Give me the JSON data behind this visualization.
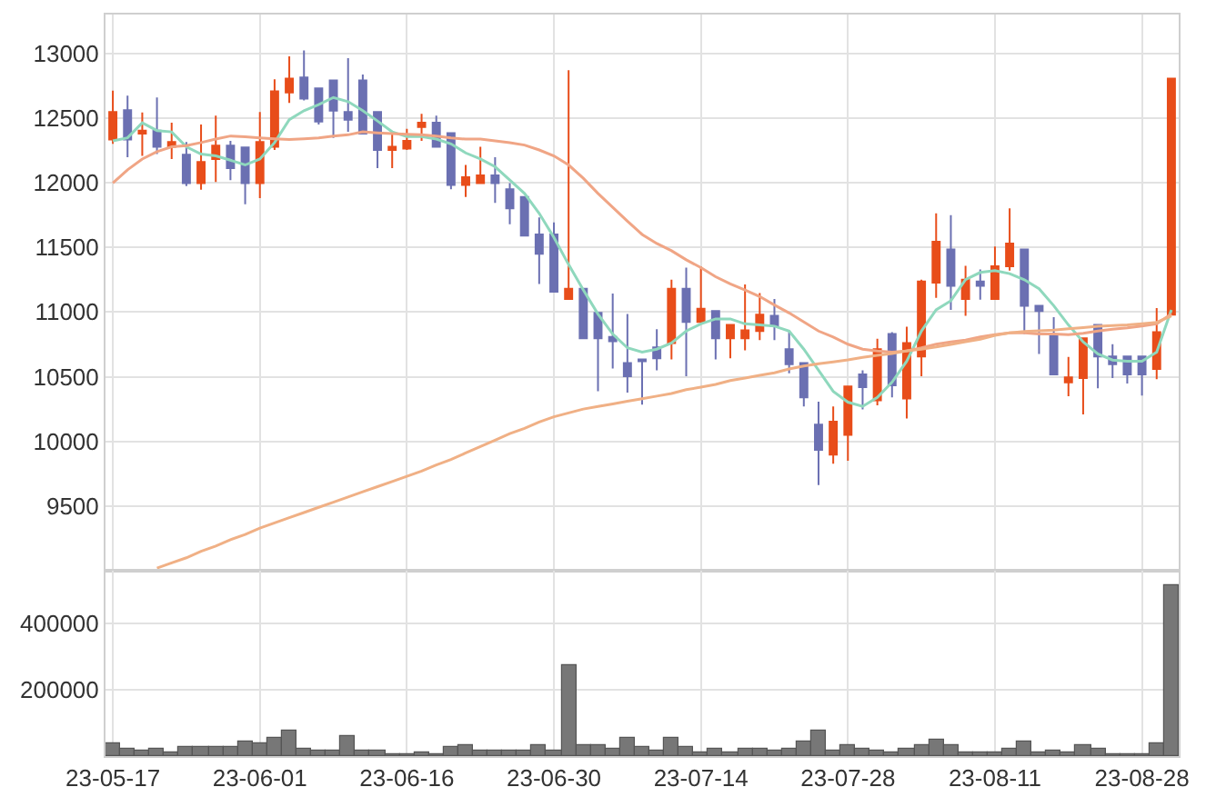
{
  "chart_data": [
    {
      "type": "candlestick",
      "categories": [
        null,
        null,
        null,
        null,
        null,
        null,
        null,
        null,
        null,
        null,
        null,
        null,
        null,
        null,
        null,
        null,
        null,
        null,
        null,
        null,
        null,
        null,
        null,
        null,
        null,
        null,
        null,
        null,
        null,
        null,
        null,
        null,
        null,
        null,
        null,
        null,
        null,
        null,
        null,
        null,
        null,
        null,
        null,
        null,
        null,
        null,
        null,
        null,
        null,
        null,
        null,
        null,
        null,
        null,
        null,
        null,
        null,
        null,
        null,
        null,
        null,
        null,
        null,
        null,
        null,
        null,
        null,
        null,
        null,
        null,
        null,
        null,
        null
      ],
      "ohlc": [
        [
          12333,
          12711,
          12300,
          12547
        ],
        [
          12561,
          12673,
          12197,
          12333
        ],
        [
          12379,
          12543,
          12207,
          12403
        ],
        [
          12403,
          12659,
          12221,
          12277
        ],
        [
          12277,
          12463,
          12183,
          12314
        ],
        [
          12216,
          12314,
          11973,
          11997
        ],
        [
          11997,
          12449,
          11945,
          12160
        ],
        [
          12183,
          12519,
          12006,
          12286
        ],
        [
          12286,
          12323,
          12020,
          12113
        ],
        [
          12272,
          12272,
          11833,
          11997
        ],
        [
          11997,
          12547,
          11880,
          12314
        ],
        [
          12277,
          12799,
          12253,
          12706
        ],
        [
          12697,
          12977,
          12617,
          12804
        ],
        [
          12813,
          13023,
          12636,
          12650
        ],
        [
          12729,
          12729,
          12449,
          12473
        ],
        [
          12790,
          12790,
          12347,
          12557
        ],
        [
          12547,
          12963,
          12393,
          12487
        ],
        [
          12790,
          12837,
          12379,
          12379
        ],
        [
          12547,
          12547,
          12113,
          12253
        ],
        [
          12253,
          12393,
          12113,
          12277
        ],
        [
          12263,
          12417,
          12253,
          12323
        ],
        [
          12431,
          12533,
          12323,
          12463
        ],
        [
          12463,
          12519,
          12277,
          12277
        ],
        [
          12384,
          12384,
          11950,
          11983
        ],
        [
          11983,
          12137,
          11889,
          12043
        ],
        [
          11997,
          12277,
          11997,
          12057
        ],
        [
          12057,
          12197,
          11843,
          11997
        ],
        [
          11950,
          11997,
          11679,
          11801
        ],
        [
          11889,
          11889,
          11591,
          11591
        ],
        [
          11600,
          11731,
          11217,
          11451
        ],
        [
          11600,
          11693,
          11157,
          11157
        ],
        [
          11101,
          12869,
          11101,
          11180
        ],
        [
          11180,
          11180,
          10797,
          10797
        ],
        [
          10993,
          10993,
          10387,
          10797
        ],
        [
          10807,
          11143,
          10564,
          10774
        ],
        [
          10606,
          10984,
          10377,
          10503
        ],
        [
          10634,
          10634,
          10284,
          10620
        ],
        [
          10727,
          10867,
          10550,
          10643
        ],
        [
          10760,
          11250,
          10634,
          11180
        ],
        [
          11180,
          11343,
          10503,
          10923
        ],
        [
          10923,
          11353,
          10923,
          11026
        ],
        [
          11007,
          11007,
          10634,
          10797
        ],
        [
          10797,
          10900,
          10643,
          10900
        ],
        [
          10797,
          11213,
          10704,
          10858
        ],
        [
          10853,
          11147,
          10783,
          10979
        ],
        [
          10970,
          11101,
          10783,
          10891
        ],
        [
          10713,
          10853,
          10527,
          10597
        ],
        [
          10606,
          10606,
          10270,
          10340
        ],
        [
          10130,
          10307,
          9663,
          9934
        ],
        [
          9897,
          10270,
          9827,
          10153
        ],
        [
          10051,
          10424,
          9850,
          10424
        ],
        [
          10517,
          10550,
          10247,
          10419
        ],
        [
          10317,
          10793,
          10279,
          10713
        ],
        [
          10830,
          10844,
          10340,
          10433
        ],
        [
          10331,
          10886,
          10176,
          10760
        ],
        [
          10657,
          11250,
          10503,
          11236
        ],
        [
          11227,
          11763,
          11110,
          11544
        ],
        [
          11483,
          11749,
          11017,
          11203
        ],
        [
          11101,
          11357,
          10970,
          11250
        ],
        [
          11236,
          11329,
          11096,
          11203
        ],
        [
          11101,
          11507,
          11101,
          11353
        ],
        [
          11353,
          11801,
          11320,
          11530
        ],
        [
          11483,
          11483,
          10830,
          11049
        ],
        [
          11049,
          11049,
          10676,
          11007
        ],
        [
          10816,
          10961,
          10517,
          10517
        ],
        [
          10457,
          10653,
          10349,
          10494
        ],
        [
          10489,
          10797,
          10209,
          10797
        ],
        [
          10900,
          10900,
          10410,
          10657
        ],
        [
          10657,
          10751,
          10489,
          10597
        ],
        [
          10657,
          10657,
          10447,
          10517
        ],
        [
          10657,
          10657,
          10354,
          10517
        ],
        [
          10559,
          11031,
          10480,
          10844
        ],
        [
          10979,
          12804,
          10979,
          12804
        ]
      ],
      "colors": [
        "#e84d1a",
        "#6b70b2",
        "#e84d1a",
        "#6b70b2",
        "#e84d1a",
        "#6b70b2",
        "#e84d1a",
        "#e84d1a",
        "#6b70b2",
        "#6b70b2",
        "#e84d1a",
        "#e84d1a",
        "#e84d1a",
        "#6b70b2",
        "#6b70b2",
        "#6b70b2",
        "#6b70b2",
        "#6b70b2",
        "#6b70b2",
        "#e84d1a",
        "#e84d1a",
        "#e84d1a",
        "#6b70b2",
        "#6b70b2",
        "#e84d1a",
        "#e84d1a",
        "#6b70b2",
        "#6b70b2",
        "#6b70b2",
        "#6b70b2",
        "#6b70b2",
        "#e84d1a",
        "#6b70b2",
        "#6b70b2",
        "#6b70b2",
        "#6b70b2",
        "#6b70b2",
        "#6b70b2",
        "#e84d1a",
        "#6b70b2",
        "#e84d1a",
        "#6b70b2",
        "#e84d1a",
        "#e84d1a",
        "#e84d1a",
        "#6b70b2",
        "#6b70b2",
        "#6b70b2",
        "#6b70b2",
        "#e84d1a",
        "#e84d1a",
        "#6b70b2",
        "#e84d1a",
        "#6b70b2",
        "#e84d1a",
        "#e84d1a",
        "#e84d1a",
        "#6b70b2",
        "#e84d1a",
        "#6b70b2",
        "#e84d1a",
        "#e84d1a",
        "#6b70b2",
        "#6b70b2",
        "#6b70b2",
        "#e84d1a",
        "#e84d1a",
        "#6b70b2",
        "#6b70b2",
        "#6b70b2",
        "#6b70b2",
        "#e84d1a",
        "#e84d1a"
      ],
      "series": [
        {
          "type": "line",
          "color": "#8fd8bd",
          "values": [
            12323,
            12347,
            12463,
            12403,
            12393,
            12277,
            12221,
            12207,
            12174,
            12137,
            12183,
            12310,
            12487,
            12557,
            12603,
            12659,
            12627,
            12557,
            12477,
            12393,
            12356,
            12356,
            12337,
            12300,
            12230,
            12183,
            12123,
            12020,
            11917,
            11763,
            11577,
            11367,
            11171,
            10984,
            10830,
            10723,
            10690,
            10713,
            10760,
            10853,
            10909,
            10947,
            10947,
            10909,
            10900,
            10891,
            10853,
            10713,
            10550,
            10387,
            10303,
            10270,
            10340,
            10457,
            10620,
            10853,
            11017,
            11087,
            11250,
            11306,
            11320,
            11297,
            11250,
            11180,
            11049,
            10900,
            10769,
            10676,
            10629,
            10620,
            10620,
            10690,
            11017
          ]
        },
        {
          "type": "line",
          "color": "#f0a585",
          "values": [
            11997,
            12100,
            12183,
            12240,
            12277,
            12286,
            12310,
            12337,
            12361,
            12355,
            12347,
            12340,
            12333,
            12340,
            12347,
            12360,
            12370,
            12393,
            12385,
            12379,
            12375,
            12370,
            12360,
            12347,
            12337,
            12337,
            12323,
            12310,
            12291,
            12253,
            12207,
            12137,
            12034,
            11917,
            11810,
            11703,
            11600,
            11530,
            11474,
            11404,
            11343,
            11273,
            11217,
            11171,
            11120,
            11054,
            10993,
            10923,
            10853,
            10807,
            10751,
            10713,
            10699,
            10690,
            10699,
            10723,
            10751,
            10769,
            10783,
            10807,
            10825,
            10839,
            10839,
            10830,
            10830,
            10825,
            10835,
            10853,
            10867,
            10877,
            10891,
            10909,
            10984
          ]
        },
        {
          "type": "line",
          "color": "#f0b085",
          "values": [
            null,
            null,
            null,
            9020,
            9060,
            9100,
            9150,
            9190,
            9240,
            9280,
            9330,
            9370,
            9410,
            9450,
            9490,
            9530,
            9570,
            9610,
            9650,
            9690,
            9730,
            9770,
            9817,
            9860,
            9910,
            9960,
            10010,
            10060,
            10100,
            10150,
            10190,
            10220,
            10250,
            10270,
            10290,
            10310,
            10330,
            10350,
            10370,
            10400,
            10419,
            10440,
            10470,
            10490,
            10510,
            10530,
            10560,
            10583,
            10600,
            10615,
            10630,
            10650,
            10665,
            10680,
            10700,
            10713,
            10730,
            10750,
            10770,
            10790,
            10820,
            10839,
            10850,
            10855,
            10860,
            10870,
            10880,
            10890,
            10895,
            10900,
            10909,
            10920,
            10970
          ]
        }
      ],
      "ylim": [
        9000,
        13300
      ],
      "yticks": [
        9500,
        10000,
        10500,
        11000,
        11500,
        12000,
        12500,
        13000
      ],
      "grid": true,
      "tick_labels": "y"
    },
    {
      "type": "bar",
      "categories": [
        "23-05-17",
        null,
        null,
        null,
        null,
        null,
        null,
        null,
        null,
        null,
        "23-06-01",
        null,
        null,
        null,
        null,
        null,
        null,
        null,
        null,
        null,
        "23-06-16",
        null,
        null,
        null,
        null,
        null,
        null,
        null,
        null,
        null,
        "23-06-30",
        null,
        null,
        null,
        null,
        null,
        null,
        null,
        null,
        null,
        "23-07-14",
        null,
        null,
        null,
        null,
        null,
        null,
        null,
        null,
        null,
        "23-07-28",
        null,
        null,
        null,
        null,
        null,
        null,
        null,
        null,
        null,
        "23-08-11",
        null,
        null,
        null,
        null,
        null,
        null,
        null,
        null,
        null,
        "23-08-28",
        null,
        null
      ],
      "values": [
        37000,
        22000,
        15000,
        21000,
        9000,
        26000,
        26000,
        26000,
        26000,
        43000,
        37000,
        54000,
        77000,
        21000,
        15000,
        15000,
        60000,
        15000,
        15000,
        4000,
        4000,
        9000,
        4000,
        26000,
        32000,
        15000,
        15000,
        15000,
        15000,
        32000,
        15000,
        273000,
        32000,
        32000,
        22000,
        54000,
        26000,
        15000,
        54000,
        26000,
        9000,
        21000,
        9000,
        21000,
        21000,
        15000,
        21000,
        43000,
        77000,
        15000,
        32000,
        21000,
        15000,
        9000,
        21000,
        32000,
        49000,
        32000,
        9000,
        9000,
        9000,
        21000,
        43000,
        9000,
        15000,
        9000,
        32000,
        21000,
        4000,
        4000,
        4000,
        37000,
        514000
      ],
      "color": "#777777",
      "ylim": [
        0,
        560000
      ],
      "yticks": [
        200000,
        400000
      ],
      "grid": true
    }
  ]
}
